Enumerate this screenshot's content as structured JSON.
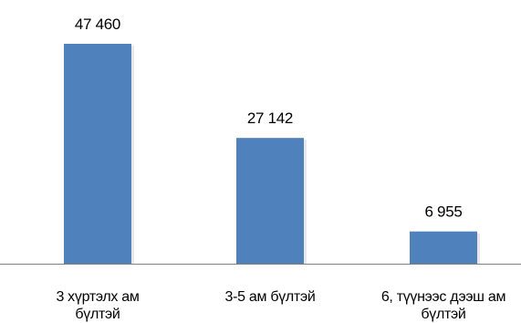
{
  "chart_data": {
    "type": "bar",
    "categories": [
      [
        "3 хүртэлх ам",
        "бүлтэй"
      ],
      [
        "3-5 ам бүлтэй"
      ],
      [
        "6, түүнээс дээш ам",
        "бүлтэй"
      ]
    ],
    "values": [
      47460,
      27142,
      6955
    ],
    "data_labels": [
      "47 460",
      "27 142",
      "6 955"
    ],
    "title": "",
    "xlabel": "",
    "ylabel": "",
    "ylim": [
      0,
      47460
    ],
    "grid": false,
    "legend": "none",
    "colors": {
      "bar": "#4f81bd",
      "axis": "#808080"
    }
  }
}
